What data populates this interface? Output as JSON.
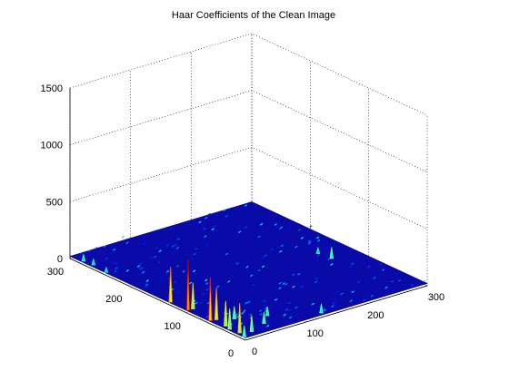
{
  "chart_data": {
    "type": "surface",
    "title": "Haar Coefficients of the Clean Image",
    "xlabel": "",
    "ylabel": "",
    "zlabel": "",
    "xlim": [
      0,
      300
    ],
    "ylim": [
      0,
      300
    ],
    "zlim": [
      0,
      1500
    ],
    "xticks": [
      0,
      100,
      200,
      300
    ],
    "yticks": [
      0,
      100,
      200,
      300
    ],
    "zticks": [
      0,
      500,
      1000,
      1500
    ],
    "xtick_labels": [
      "0",
      "100",
      "200",
      "300"
    ],
    "ytick_labels": [
      "0",
      "100",
      "200",
      "300"
    ],
    "ztick_labels": [
      "0",
      "500",
      "1000",
      "1500"
    ],
    "grid": true,
    "colormap": "jet",
    "baseline_level": 20,
    "peaks": [
      {
        "x": 2,
        "y": 130,
        "z": 330
      },
      {
        "x": 2,
        "y": 100,
        "z": 470
      },
      {
        "x": 2,
        "y": 62,
        "z": 400
      },
      {
        "x": 5,
        "y": 15,
        "z": 280
      },
      {
        "x": 10,
        "y": 100,
        "z": 250
      },
      {
        "x": 10,
        "y": 60,
        "z": 300
      },
      {
        "x": 6,
        "y": 40,
        "z": 240
      },
      {
        "x": 3,
        "y": 30,
        "z": 200
      },
      {
        "x": 20,
        "y": 10,
        "z": 160
      },
      {
        "x": 1,
        "y": 3,
        "z": 120
      },
      {
        "x": 50,
        "y": 20,
        "z": 120
      },
      {
        "x": 30,
        "y": 50,
        "z": 130
      },
      {
        "x": 70,
        "y": 35,
        "z": 100
      },
      {
        "x": 130,
        "y": 5,
        "z": 100
      },
      {
        "x": 258,
        "y": 120,
        "z": 120
      },
      {
        "x": 255,
        "y": 140,
        "z": 70
      },
      {
        "x": 3,
        "y": 280,
        "z": 80
      },
      {
        "x": 5,
        "y": 265,
        "z": 70
      },
      {
        "x": 2,
        "y": 240,
        "z": 60
      }
    ]
  }
}
